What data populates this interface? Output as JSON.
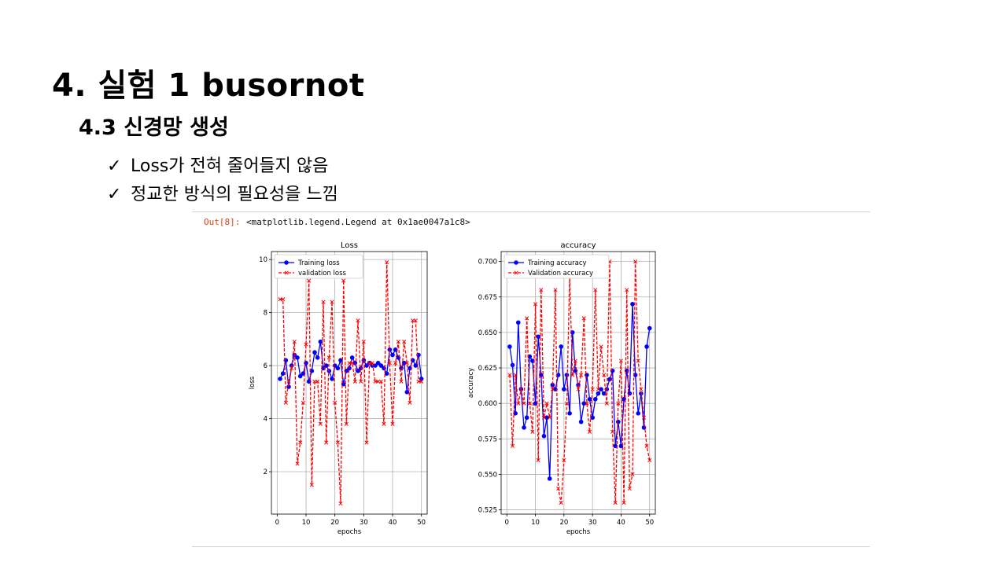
{
  "slide": {
    "title": "4. 실험 1 busornot",
    "subtitle": "4.3 신경망 생성",
    "bullets": [
      {
        "mark": "✓",
        "text": "Loss가 전혀 줄어들지 않음"
      },
      {
        "mark": "✓",
        "text": "정교한 방식의 필요성을 느낌"
      }
    ]
  },
  "notebook": {
    "out_prompt": "Out[8]:",
    "out_text": "<matplotlib.legend.Legend at 0x1ae0047a1c8>"
  },
  "chart_data": [
    {
      "type": "line",
      "title": "Loss",
      "xlabel": "epochs",
      "ylabel": "loss",
      "xlim": [
        -2,
        52
      ],
      "ylim": [
        0.4,
        10.3
      ],
      "xticks": [
        0,
        10,
        20,
        30,
        40,
        50
      ],
      "yticks": [
        2,
        4,
        6,
        8,
        10
      ],
      "grid": true,
      "legend": "upper-left",
      "x": [
        1,
        2,
        3,
        4,
        5,
        6,
        7,
        8,
        9,
        10,
        11,
        12,
        13,
        14,
        15,
        16,
        17,
        18,
        19,
        20,
        21,
        22,
        23,
        24,
        25,
        26,
        27,
        28,
        29,
        30,
        31,
        32,
        33,
        34,
        35,
        36,
        37,
        38,
        39,
        40,
        41,
        42,
        43,
        44,
        45,
        46,
        47,
        48,
        49,
        50
      ],
      "series": [
        {
          "name": "Training loss",
          "color": "#0000ff",
          "style": "solid-circle",
          "values": [
            5.5,
            5.7,
            6.2,
            5.2,
            6.0,
            6.4,
            6.3,
            5.6,
            5.7,
            6.1,
            5.4,
            5.8,
            6.5,
            6.3,
            6.9,
            5.9,
            6.0,
            5.8,
            5.5,
            6.0,
            5.9,
            6.2,
            5.3,
            5.8,
            5.9,
            6.3,
            6.1,
            5.8,
            5.9,
            6.2,
            6.0,
            6.1,
            6.0,
            6.0,
            6.1,
            6.0,
            5.9,
            5.7,
            6.6,
            6.4,
            6.6,
            6.3,
            5.9,
            6.1,
            5.0,
            5.9,
            6.2,
            6.0,
            6.4,
            5.5
          ]
        },
        {
          "name": "validation loss",
          "color": "#ff0000",
          "style": "dashed-x",
          "values": [
            8.5,
            8.5,
            4.6,
            5.4,
            5.9,
            6.9,
            2.3,
            3.1,
            4.6,
            6.8,
            9.2,
            1.5,
            5.4,
            5.4,
            3.8,
            8.4,
            3.1,
            6.3,
            8.4,
            4.6,
            3.1,
            0.8,
            9.2,
            3.8,
            6.1,
            6.1,
            5.4,
            7.7,
            5.4,
            6.9,
            3.1,
            6.1,
            6.1,
            5.4,
            5.4,
            5.4,
            3.8,
            9.9,
            6.1,
            3.8,
            6.1,
            6.9,
            5.4,
            6.9,
            6.1,
            4.6,
            7.7,
            7.7,
            5.4,
            5.4
          ]
        }
      ]
    },
    {
      "type": "line",
      "title": "accuracy",
      "xlabel": "epochs",
      "ylabel": "accuracy",
      "xlim": [
        -2,
        52
      ],
      "ylim": [
        0.522,
        0.707
      ],
      "xticks": [
        0,
        10,
        20,
        30,
        40,
        50
      ],
      "yticks": [
        "0.525",
        "0.550",
        "0.575",
        "0.600",
        "0.625",
        "0.650",
        "0.675",
        "0.700"
      ],
      "grid": true,
      "legend": "upper-left",
      "x": [
        1,
        2,
        3,
        4,
        5,
        6,
        7,
        8,
        9,
        10,
        11,
        12,
        13,
        14,
        15,
        16,
        17,
        18,
        19,
        20,
        21,
        22,
        23,
        24,
        25,
        26,
        27,
        28,
        29,
        30,
        31,
        32,
        33,
        34,
        35,
        36,
        37,
        38,
        39,
        40,
        41,
        42,
        43,
        44,
        45,
        46,
        47,
        48,
        49,
        50
      ],
      "series": [
        {
          "name": "Training accuracy",
          "color": "#0000ff",
          "style": "solid-circle",
          "values": [
            0.64,
            0.627,
            0.593,
            0.657,
            0.61,
            0.583,
            0.59,
            0.633,
            0.63,
            0.6,
            0.647,
            0.62,
            0.577,
            0.59,
            0.547,
            0.613,
            0.61,
            0.62,
            0.64,
            0.61,
            0.62,
            0.593,
            0.65,
            0.623,
            0.613,
            0.587,
            0.6,
            0.62,
            0.603,
            0.59,
            0.603,
            0.607,
            0.61,
            0.607,
            0.61,
            0.617,
            0.623,
            0.57,
            0.587,
            0.57,
            0.603,
            0.623,
            0.607,
            0.67,
            0.62,
            0.593,
            0.607,
            0.583,
            0.64,
            0.653
          ]
        },
        {
          "name": "Validation accuracy",
          "color": "#ff0000",
          "style": "dashed-x",
          "values": [
            0.62,
            0.57,
            0.62,
            0.6,
            0.61,
            0.6,
            0.66,
            0.6,
            0.58,
            0.67,
            0.56,
            0.68,
            0.59,
            0.6,
            0.59,
            0.61,
            0.68,
            0.54,
            0.53,
            0.56,
            0.6,
            0.69,
            0.62,
            0.63,
            0.61,
            0.62,
            0.66,
            0.6,
            0.58,
            0.61,
            0.68,
            0.61,
            0.64,
            0.62,
            0.6,
            0.7,
            0.58,
            0.53,
            0.6,
            0.63,
            0.53,
            0.68,
            0.54,
            0.55,
            0.7,
            0.63,
            0.61,
            0.59,
            0.57,
            0.56
          ]
        }
      ]
    }
  ]
}
